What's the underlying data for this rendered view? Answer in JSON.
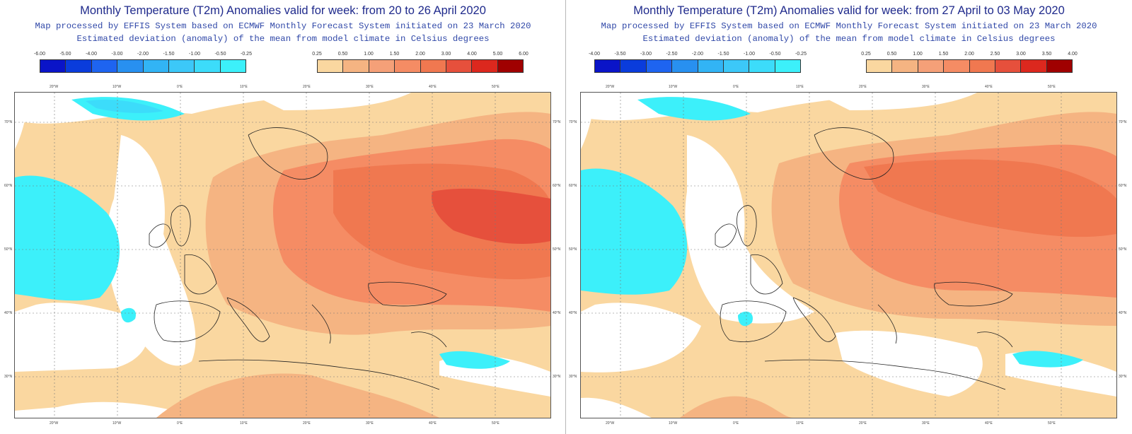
{
  "panels": [
    {
      "title": "Monthly Temperature (T2m) Anomalies valid for week: from 20 to 26 April 2020",
      "subtitle1": "Map processed by EFFIS System based on ECMWF Monthly Forecast System initiated on 23 March 2020",
      "subtitle2": "Estimated deviation (anomaly) of the mean from model climate in Celsius degrees",
      "legend_cold": {
        "labels": [
          "-6.00",
          "-5.00",
          "-4.00",
          "-3.00",
          "-2.00",
          "-1.50",
          "-1.00",
          "-0.50",
          "-0.25"
        ],
        "colors": [
          "#0a14c8",
          "#0a3cdc",
          "#1e64f0",
          "#2890f0",
          "#32b4f5",
          "#3cc8f8",
          "#3cdcfa",
          "#3cf0fa"
        ]
      },
      "legend_warm": {
        "labels": [
          "0.25",
          "0.50",
          "1.00",
          "1.50",
          "2.00",
          "3.00",
          "4.00",
          "5.00",
          "6.00"
        ],
        "colors": [
          "#fad7a0",
          "#f5b482",
          "#f5a078",
          "#f58c64",
          "#f07850",
          "#e6503c",
          "#dc281e",
          "#a00000"
        ]
      }
    },
    {
      "title": "Monthly Temperature (T2m) Anomalies valid for week: from 27 April to 03 May 2020",
      "subtitle1": "Map processed by EFFIS System based on ECMWF Monthly Forecast System initiated on 23 March 2020",
      "subtitle2": "Estimated deviation (anomaly) of the mean from model climate in Celsius degrees",
      "legend_cold": {
        "labels": [
          "-4.00",
          "-3.50",
          "-3.00",
          "-2.50",
          "-2.00",
          "-1.50",
          "-1.00",
          "-0.50",
          "-0.25"
        ],
        "colors": [
          "#0a14c8",
          "#0a3cdc",
          "#1e64f0",
          "#2890f0",
          "#32b4f5",
          "#3cc8f8",
          "#3cdcfa",
          "#3cf0fa"
        ]
      },
      "legend_warm": {
        "labels": [
          "0.25",
          "0.50",
          "1.00",
          "1.50",
          "2.00",
          "2.50",
          "3.00",
          "3.50",
          "4.00"
        ],
        "colors": [
          "#fad7a0",
          "#f5b482",
          "#f5a078",
          "#f58c64",
          "#f07850",
          "#e6503c",
          "#dc281e",
          "#a00000"
        ]
      }
    }
  ],
  "map_axes": {
    "lon_labels": [
      "20°W",
      "10°W",
      "0°E",
      "10°E",
      "20°E",
      "30°E",
      "40°E",
      "50°E"
    ],
    "lat_labels": [
      "70°N",
      "60°N",
      "50°N",
      "40°N",
      "30°N"
    ]
  }
}
